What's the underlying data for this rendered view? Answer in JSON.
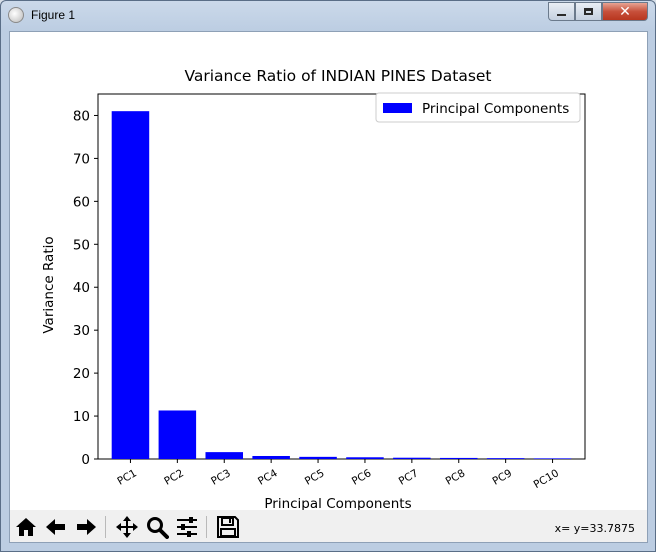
{
  "window": {
    "title": "Figure 1",
    "controls": {
      "minimize": "minimize",
      "maximize": "maximize",
      "close": "close"
    }
  },
  "toolbar": {
    "buttons": [
      {
        "name": "home",
        "icon": "home-icon"
      },
      {
        "name": "back",
        "icon": "arrow-left-icon"
      },
      {
        "name": "forward",
        "icon": "arrow-right-icon"
      },
      {
        "name": "pan",
        "icon": "move-icon"
      },
      {
        "name": "zoom",
        "icon": "magnifier-icon"
      },
      {
        "name": "configure",
        "icon": "sliders-icon"
      },
      {
        "name": "save",
        "icon": "floppy-disk-icon"
      }
    ],
    "coords": "x= y=33.7875"
  },
  "chart_data": {
    "type": "bar",
    "title": "Variance Ratio of INDIAN PINES Dataset",
    "xlabel": "Principal Components",
    "ylabel": "Variance Ratio",
    "categories": [
      "PC1",
      "PC2",
      "PC3",
      "PC4",
      "PC5",
      "PC6",
      "PC7",
      "PC8",
      "PC9",
      "PC10"
    ],
    "series": [
      {
        "name": "Principal Components",
        "values": [
          81.0,
          11.3,
          1.6,
          0.7,
          0.5,
          0.4,
          0.3,
          0.25,
          0.2,
          0.15
        ],
        "color": "#0000ff"
      }
    ],
    "ylim": [
      0,
      85
    ],
    "yticks": [
      0,
      10,
      20,
      30,
      40,
      50,
      60,
      70,
      80
    ],
    "legend_position": "top-right",
    "grid": false
  }
}
